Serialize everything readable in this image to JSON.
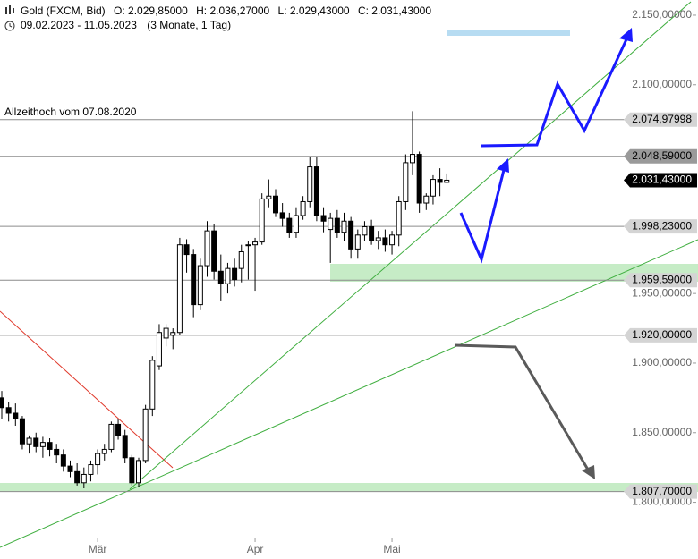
{
  "header": {
    "instrument": "Gold (FXCM, Bid)",
    "ohlc": [
      "O: 2.029,85000",
      "H: 2.036,27000",
      "L: 2.029,43000",
      "C: 2.031,43000"
    ],
    "range": "09.02.2023 - 11.05.2023",
    "period": "(3 Monate, 1 Tag)"
  },
  "chart_data": {
    "type": "candlestick",
    "categories": [
      null,
      null,
      null,
      null,
      null,
      null,
      null,
      null,
      null,
      null,
      null,
      null,
      null,
      null,
      "Mär",
      null,
      null,
      null,
      null,
      null,
      null,
      null,
      null,
      null,
      null,
      null,
      null,
      null,
      null,
      null,
      null,
      null,
      null,
      null,
      null,
      null,
      null,
      "Apr",
      null,
      null,
      null,
      null,
      null,
      null,
      null,
      null,
      null,
      null,
      null,
      null,
      null,
      null,
      null,
      null,
      null,
      null,
      null,
      "Mai",
      null,
      null,
      null,
      null,
      null,
      null,
      null,
      null
    ],
    "open": [
      1875,
      1868,
      1864,
      1860,
      1842,
      1846,
      1840,
      1843,
      1838,
      1834,
      1826,
      1822,
      1814,
      1820,
      1827,
      1835,
      1838,
      1856,
      1848,
      1832,
      1814,
      1830,
      1867,
      1898,
      1918,
      1920,
      1922,
      1985,
      1978,
      1942,
      1970,
      1995,
      1966,
      1957,
      1968,
      1968,
      1985,
      1985,
      1987,
      2018,
      2020,
      2008,
      2004,
      1994,
      2006,
      2016,
      2041,
      2006,
      1996,
      2004,
      1994,
      2002,
      1982,
      1992,
      1998,
      1988,
      1990,
      1985,
      1992,
      2016,
      2044,
      2050,
      2015,
      2020,
      2032,
      2029.85
    ],
    "high": [
      1880,
      1872,
      1871,
      1862,
      1848,
      1850,
      1847,
      1846,
      1842,
      1838,
      1830,
      1828,
      1825,
      1830,
      1838,
      1842,
      1858,
      1860,
      1852,
      1834,
      1832,
      1870,
      1905,
      1928,
      1928,
      1925,
      1990,
      1989,
      1982,
      1975,
      2002,
      2000,
      1978,
      1972,
      1975,
      1985,
      1988,
      1990,
      2022,
      2032,
      2025,
      2015,
      2008,
      2012,
      2020,
      2048,
      2048,
      2012,
      2008,
      2010,
      2008,
      2005,
      1996,
      2002,
      2003,
      1995,
      1996,
      1995,
      2020,
      2050,
      2081,
      2052,
      2022,
      2035,
      2040,
      2036.27
    ],
    "low": [
      1860,
      1858,
      1855,
      1838,
      1835,
      1836,
      1832,
      1833,
      1828,
      1822,
      1818,
      1812,
      1810,
      1815,
      1820,
      1830,
      1836,
      1845,
      1828,
      1812,
      1811,
      1828,
      1862,
      1895,
      1912,
      1910,
      1920,
      1965,
      1933,
      1938,
      1962,
      1960,
      1945,
      1950,
      1955,
      1958,
      1960,
      1952,
      1985,
      2012,
      2005,
      1998,
      1990,
      1990,
      2003,
      2012,
      2002,
      1994,
      1972,
      1990,
      1988,
      1975,
      1975,
      1988,
      1985,
      1982,
      1980,
      1978,
      1984,
      2010,
      2035,
      2008,
      2010,
      2014,
      2020,
      2029.43
    ],
    "close": [
      1868,
      1864,
      1860,
      1842,
      1846,
      1840,
      1843,
      1838,
      1834,
      1826,
      1822,
      1814,
      1820,
      1827,
      1835,
      1838,
      1856,
      1848,
      1832,
      1814,
      1830,
      1867,
      1902,
      1922,
      1925,
      1922,
      1985,
      1978,
      1942,
      1970,
      1995,
      1966,
      1957,
      1968,
      1960,
      1980,
      1985,
      1987,
      2018,
      2020,
      2008,
      2004,
      1994,
      2006,
      2016,
      2041,
      2006,
      2002,
      2004,
      1994,
      2002,
      1982,
      1992,
      1998,
      1988,
      1990,
      1985,
      1992,
      2016,
      2044,
      2050,
      2015,
      2020,
      2032,
      2029.85,
      2031.43
    ],
    "ylim": [
      1775.3,
      2160.9
    ],
    "yticks": [
      {
        "value": 2150,
        "label": "2.150,00000"
      },
      {
        "value": 2100,
        "label": "2.100,00000"
      },
      {
        "value": 1950,
        "label": "1.950,00000"
      },
      {
        "value": 1900,
        "label": "1.900,00000"
      },
      {
        "value": 1850,
        "label": "1.850,00000"
      },
      {
        "value": 1800,
        "label": "1.800,00000"
      }
    ],
    "levels": [
      {
        "value": 2074.97998,
        "label": "2.074,97998",
        "color": "#d4d4d4",
        "line": true
      },
      {
        "value": 2048.59,
        "label": "2.048,59000",
        "color": "#9a9a9a",
        "line": true
      },
      {
        "value": 2031.43,
        "label": "2.031,43000",
        "color": "#000000",
        "line": false
      },
      {
        "value": 1998.23,
        "label": "1.998,23000",
        "color": "#d4d4d4",
        "line": true
      },
      {
        "value": 1959.59,
        "label": "1.959,59000",
        "color": "#d4d4d4",
        "line": true
      },
      {
        "value": 1920,
        "label": "1.920,00000",
        "color": "#d4d4d4",
        "line": true
      },
      {
        "value": 1807.7,
        "label": "1.807,70000",
        "color": "#d4d4d4",
        "line": true
      }
    ],
    "annotation": "Allzeithoch vom 07.08.2020",
    "up_color": "#ffffff",
    "down_color": "#000000"
  }
}
